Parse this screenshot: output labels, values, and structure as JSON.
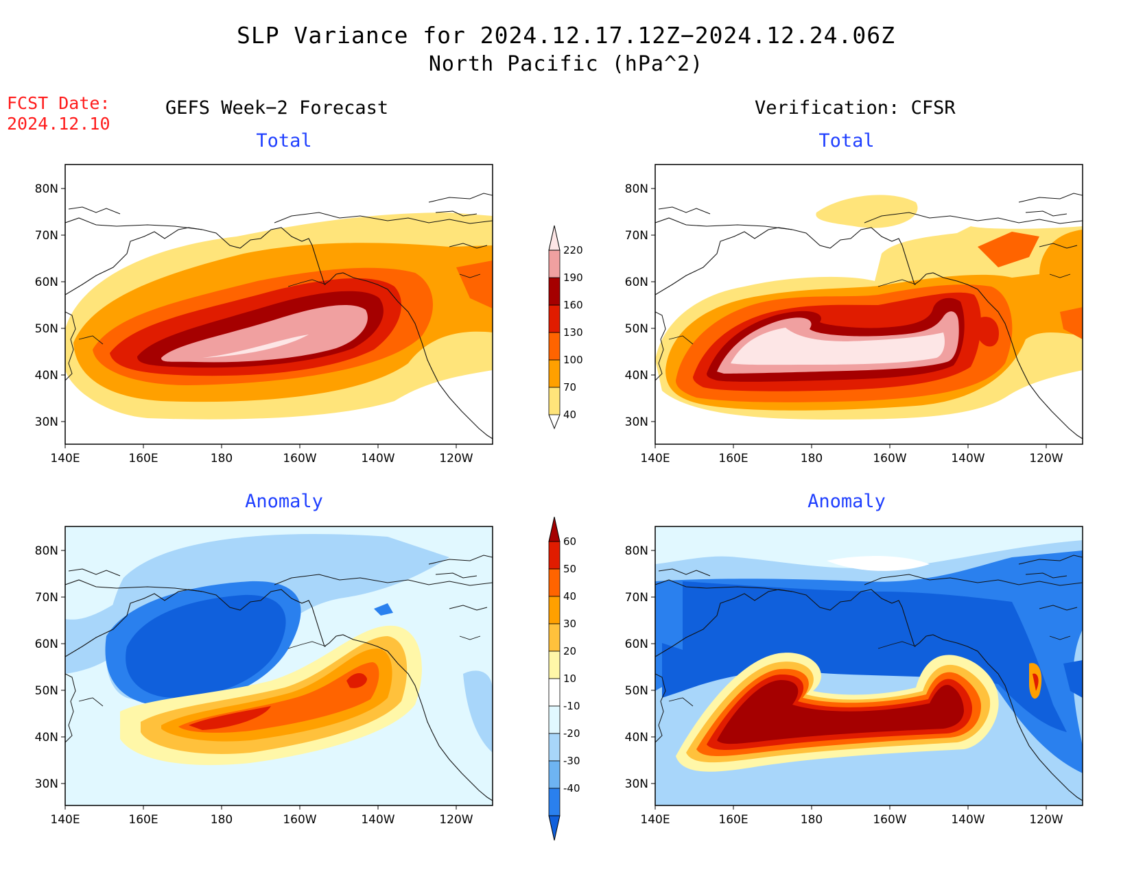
{
  "title": "SLP Variance for 2024.12.17.12Z−2024.12.24.06Z",
  "subtitle": "North Pacific (hPa^2)",
  "fcst_label": "FCST Date:",
  "fcst_date": "2024.12.10",
  "left_column_title": "GEFS Week−2 Forecast",
  "right_column_title": "Verification: CFSR",
  "panels": {
    "gefs_total": {
      "label": "Total"
    },
    "cfsr_total": {
      "label": "Total"
    },
    "gefs_anomaly": {
      "label": "Anomaly"
    },
    "cfsr_anomaly": {
      "label": "Anomaly"
    }
  },
  "axes": {
    "lat_labels": [
      "80N",
      "70N",
      "60N",
      "50N",
      "40N",
      "30N"
    ],
    "lon_labels": [
      "140E",
      "160E",
      "180",
      "160W",
      "140W",
      "120W"
    ]
  },
  "total_colorbar": {
    "levels": [
      "40",
      "70",
      "100",
      "130",
      "160",
      "190",
      "220"
    ],
    "colors": [
      "#ffe47a",
      "#ffa000",
      "#ff6400",
      "#e01c00",
      "#a50000",
      "#f0a0a0",
      "#fde6e6"
    ]
  },
  "anomaly_colorbar": {
    "levels": [
      "-40",
      "-30",
      "-20",
      "-10",
      "10",
      "20",
      "30",
      "40",
      "50",
      "60"
    ],
    "colors": [
      "#1060dc",
      "#2a80ee",
      "#6eb4f2",
      "#a8d6fa",
      "#e1f8ff",
      "#ffffff",
      "#fff7a8",
      "#ffc13c",
      "#ffa000",
      "#ff6400",
      "#e01c00",
      "#a50000"
    ]
  }
}
